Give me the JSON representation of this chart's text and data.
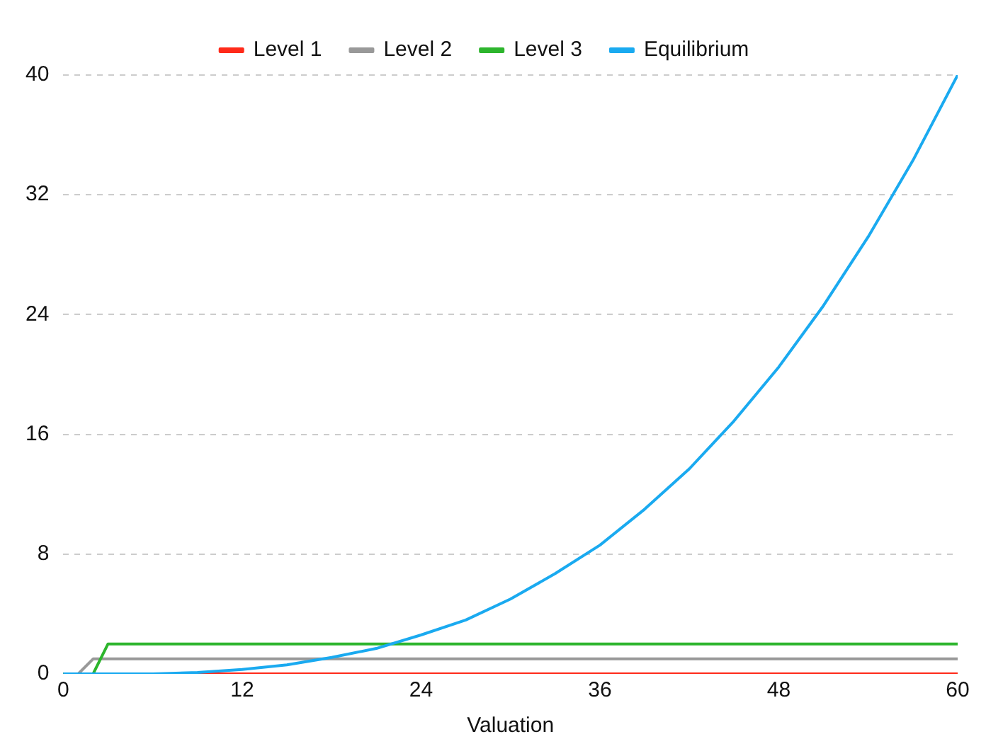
{
  "chart_data": {
    "type": "line",
    "xlabel": "Valuation",
    "xlim": [
      0,
      60
    ],
    "xticks": [
      0,
      12,
      24,
      36,
      48,
      60
    ],
    "ylim": [
      0,
      40
    ],
    "yticks": [
      0,
      8,
      16,
      24,
      32,
      40
    ],
    "grid": "y",
    "legend": "top",
    "marker": "none",
    "series": [
      {
        "name": "Level 1",
        "color": "#ff2a1a",
        "x": [
          0,
          60
        ],
        "values": [
          0,
          0
        ]
      },
      {
        "name": "Level 2",
        "color": "#999999",
        "x": [
          0,
          1,
          2,
          60
        ],
        "values": [
          0,
          0,
          1,
          1
        ]
      },
      {
        "name": "Level 3",
        "color": "#2db52d",
        "x": [
          0,
          2,
          3,
          60
        ],
        "values": [
          0,
          0,
          2,
          2
        ]
      },
      {
        "name": "Equilibrium",
        "color": "#1aaaf0",
        "x": [
          0,
          3,
          6,
          9,
          12,
          15,
          18,
          21,
          24,
          27,
          30,
          33,
          36,
          39,
          42,
          45,
          48,
          51,
          54,
          57,
          60
        ],
        "values": [
          0,
          0,
          0,
          0.1,
          0.3,
          0.6,
          1.1,
          1.7,
          2.6,
          3.6,
          5,
          6.7,
          8.6,
          11,
          13.7,
          16.9,
          20.5,
          24.6,
          29.2,
          34.3,
          40
        ]
      }
    ]
  }
}
